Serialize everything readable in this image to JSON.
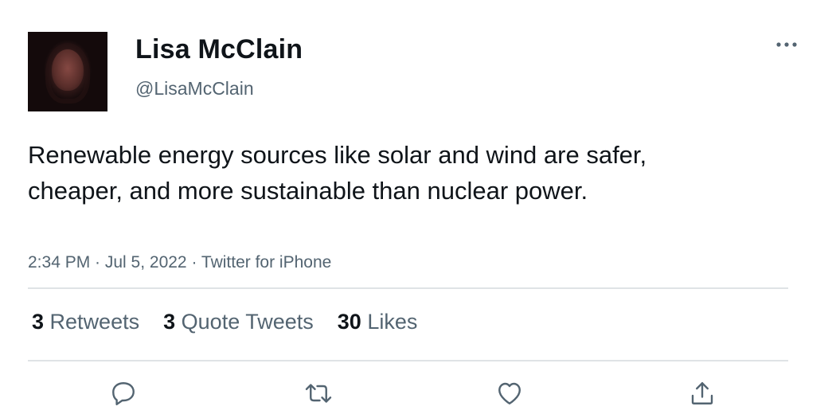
{
  "user": {
    "display_name": "Lisa McClain",
    "handle": "@LisaMcClain"
  },
  "tweet": {
    "text": "Renewable energy sources like solar and wind are safer, cheaper, and more sustainable than nuclear power.",
    "meta": "2:34 PM · Jul 5, 2022 · Twitter for iPhone"
  },
  "stats": {
    "retweets_count": "3",
    "retweets_label": "Retweets",
    "quotes_count": "3",
    "quotes_label": "Quote Tweets",
    "likes_count": "30",
    "likes_label": "Likes"
  },
  "icons": {
    "more": "more-options-icon",
    "reply": "reply-icon",
    "retweet": "retweet-icon",
    "like": "like-heart-icon",
    "share": "share-icon"
  },
  "colors": {
    "text_primary": "#0f1419",
    "text_secondary": "#536471",
    "divider": "#dfe3e6"
  }
}
